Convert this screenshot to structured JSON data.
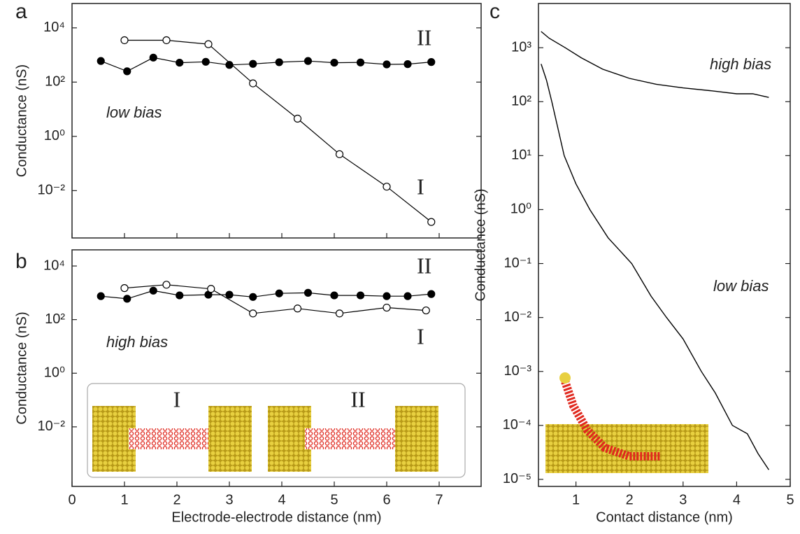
{
  "chart_data": [
    {
      "type": "line",
      "panel_label": "a",
      "log_y": true,
      "color": "#000000",
      "ylabel": "Conductance (nS)",
      "annotation": "low bias",
      "xlim": [
        0,
        7.8
      ],
      "xticks": [
        0,
        1,
        2,
        3,
        4,
        5,
        6,
        7
      ],
      "ylim": [
        0.00018,
        79000
      ],
      "yticks": [
        {
          "value": 10000,
          "label": "10⁴"
        },
        {
          "value": 100,
          "label": "10²"
        },
        {
          "value": 1,
          "label": "10⁰"
        },
        {
          "value": 0.01,
          "label": "10⁻²"
        }
      ],
      "series": [
        {
          "name": "I",
          "marker": "open",
          "x": [
            1.0,
            1.8,
            2.6,
            3.45,
            4.3,
            5.1,
            6.0,
            6.85
          ],
          "values": [
            3500,
            3500,
            2500,
            90,
            4.5,
            0.22,
            0.014,
            0.0007
          ]
        },
        {
          "name": "II",
          "marker": "filled",
          "x": [
            0.55,
            1.05,
            1.55,
            2.05,
            2.55,
            3.0,
            3.45,
            3.95,
            4.5,
            5.0,
            5.5,
            6.0,
            6.4,
            6.85
          ],
          "values": [
            600,
            250,
            800,
            520,
            560,
            430,
            470,
            540,
            600,
            520,
            530,
            450,
            460,
            550
          ]
        }
      ]
    },
    {
      "type": "line",
      "panel_label": "b",
      "log_y": true,
      "color": "#000000",
      "ylabel": "Conductance (nS)",
      "xlabel": "Electrode-electrode distance (nm)",
      "annotation": "high bias",
      "inset_labels": [
        "I",
        "II"
      ],
      "xlim": [
        0,
        7.8
      ],
      "xticks": [
        0,
        1,
        2,
        3,
        4,
        5,
        6,
        7
      ],
      "ylim": [
        6e-05,
        40000
      ],
      "yticks": [
        {
          "value": 10000,
          "label": "10⁴"
        },
        {
          "value": 100,
          "label": "10²"
        },
        {
          "value": 1,
          "label": "10⁰"
        },
        {
          "value": 0.01,
          "label": "10⁻²"
        }
      ],
      "series": [
        {
          "name": "II",
          "marker": "filled",
          "x": [
            0.55,
            1.05,
            1.55,
            2.05,
            2.6,
            3.0,
            3.45,
            3.95,
            4.5,
            5.0,
            5.5,
            6.0,
            6.4,
            6.85
          ],
          "values": [
            750,
            600,
            1200,
            800,
            850,
            850,
            700,
            950,
            1000,
            800,
            800,
            750,
            750,
            900
          ]
        },
        {
          "name": "I",
          "marker": "open",
          "x": [
            1.0,
            1.8,
            2.65,
            3.45,
            4.3,
            5.1,
            6.0,
            6.75
          ],
          "values": [
            1500,
            2000,
            1400,
            170,
            260,
            170,
            280,
            220
          ]
        }
      ]
    },
    {
      "type": "line",
      "panel_label": "c",
      "log_y": true,
      "color": "#000000",
      "ylabel": "Conductance (nS)",
      "xlabel": "Contact distance (nm)",
      "xlim": [
        0.3,
        5.0
      ],
      "xticks": [
        1,
        2,
        3,
        4,
        5
      ],
      "ylim": [
        7.4e-06,
        6600
      ],
      "yticks": [
        {
          "value": 1000,
          "label": "10³"
        },
        {
          "value": 100,
          "label": "10²"
        },
        {
          "value": 10,
          "label": "10¹"
        },
        {
          "value": 1,
          "label": "10⁰"
        },
        {
          "value": 0.1,
          "label": "10⁻¹"
        },
        {
          "value": 0.01,
          "label": "10⁻²"
        },
        {
          "value": 0.001,
          "label": "10⁻³"
        },
        {
          "value": 0.0001,
          "label": "10⁻⁴"
        },
        {
          "value": 1e-05,
          "label": "10⁻⁵"
        }
      ],
      "series": [
        {
          "name": "high bias",
          "marker": "none",
          "x": [
            0.35,
            0.5,
            0.8,
            1.1,
            1.5,
            2.0,
            2.5,
            3.0,
            3.5,
            4.0,
            4.3,
            4.6
          ],
          "values": [
            2000,
            1500,
            1000,
            650,
            400,
            270,
            210,
            180,
            160,
            140,
            140,
            120
          ]
        },
        {
          "name": "low bias",
          "marker": "none",
          "x": [
            0.35,
            0.45,
            0.55,
            0.78,
            1.0,
            1.26,
            1.6,
            2.04,
            2.4,
            2.69,
            3.0,
            3.34,
            3.6,
            3.92,
            4.2,
            4.4,
            4.6
          ],
          "values": [
            500,
            250,
            100,
            10,
            3,
            1,
            0.3,
            0.1,
            0.025,
            0.01,
            0.004,
            0.001,
            0.0004,
            0.0001,
            7e-05,
            3e-05,
            1.5e-05
          ]
        }
      ]
    }
  ]
}
